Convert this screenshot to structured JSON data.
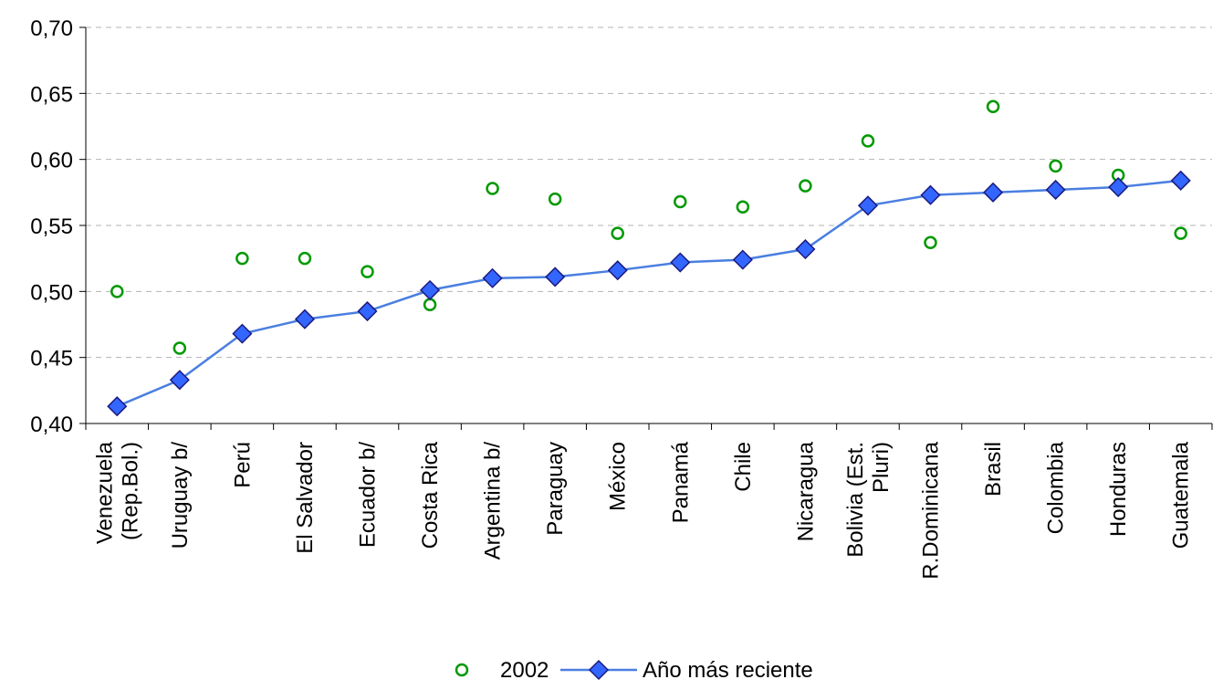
{
  "chart_data": {
    "type": "line",
    "title": "",
    "xlabel": "",
    "ylabel": "",
    "ylim": [
      0.4,
      0.7
    ],
    "yticks": [
      "0,40",
      "0,45",
      "0,50",
      "0,55",
      "0,60",
      "0,65",
      "0,70"
    ],
    "grid": "horizontal dashed",
    "legend_position": "bottom",
    "categories": [
      [
        "Venezuela",
        "(Rep.Bol.)"
      ],
      [
        "Uruguay b/"
      ],
      [
        "Perú"
      ],
      [
        "El Salvador"
      ],
      [
        "Ecuador b/"
      ],
      [
        "Costa Rica"
      ],
      [
        "Argentina b/"
      ],
      [
        "Paraguay"
      ],
      [
        "México"
      ],
      [
        "Panamá"
      ],
      [
        "Chile"
      ],
      [
        "Nicaragua"
      ],
      [
        "Bolivia (Est.",
        "Pluri)"
      ],
      [
        "R.Dominicana"
      ],
      [
        "Brasil"
      ],
      [
        "Colombia"
      ],
      [
        "Honduras"
      ],
      [
        "Guatemala"
      ]
    ],
    "series": [
      {
        "name": "2002",
        "style": "markers",
        "marker": "circle",
        "color": "#009900",
        "values": [
          0.5,
          0.457,
          0.525,
          0.525,
          0.515,
          0.49,
          0.578,
          0.57,
          0.544,
          0.568,
          0.564,
          0.58,
          0.614,
          0.537,
          0.64,
          0.595,
          0.588,
          0.544
        ]
      },
      {
        "name": "Año más reciente",
        "style": "line+markers",
        "marker": "diamond",
        "color": "#3366ff",
        "line_color": "#4a7fe0",
        "values": [
          0.413,
          0.433,
          0.468,
          0.479,
          0.485,
          0.501,
          0.51,
          0.511,
          0.516,
          0.522,
          0.524,
          0.532,
          0.565,
          0.573,
          0.575,
          0.577,
          0.579,
          0.584
        ]
      }
    ]
  }
}
